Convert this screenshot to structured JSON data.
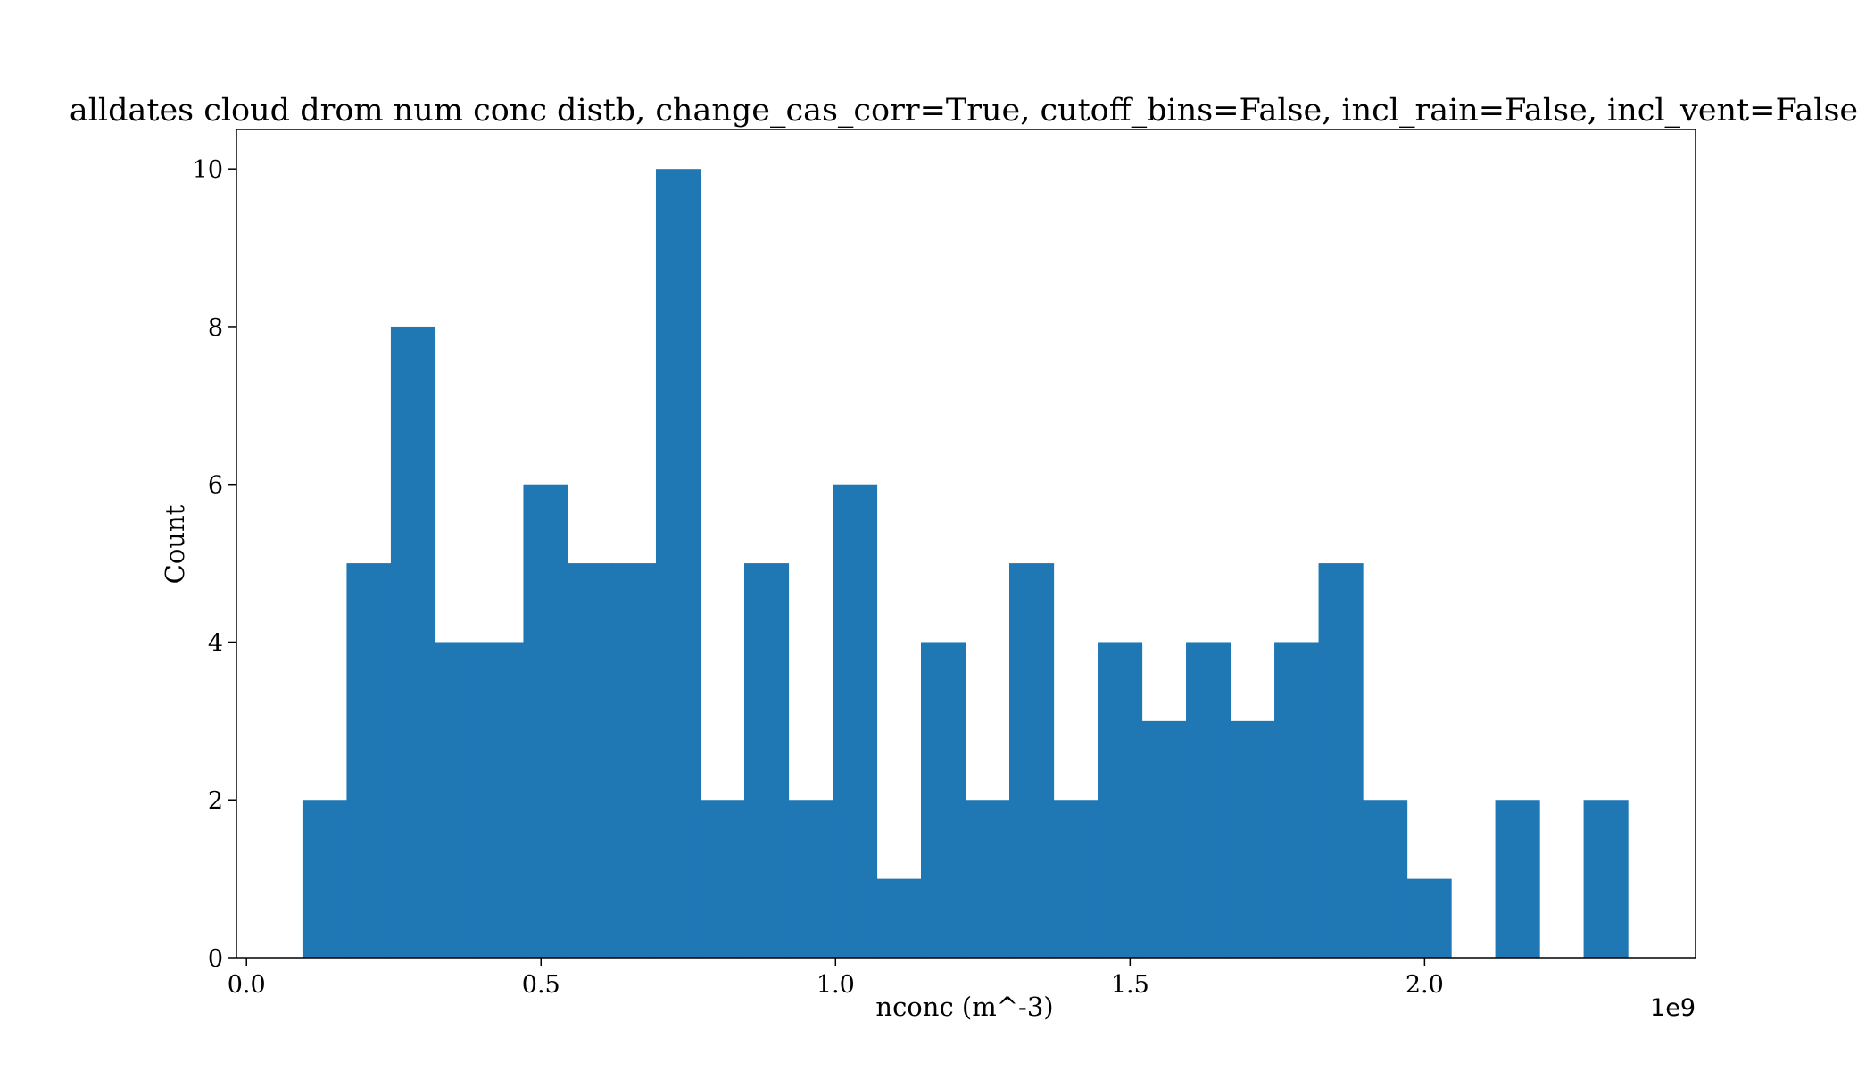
{
  "chart_data": {
    "type": "bar",
    "title": "alldates cloud drom num conc distb, change_cas_corr=True, cutoff_bins=False, incl_rain=False, incl_vent=False",
    "xlabel": "nconc (m^-3)",
    "ylabel": "Count",
    "x_offset_label": "1e9",
    "x_scale": 1000000000,
    "bin_edges": [
      0.095,
      0.17,
      0.245,
      0.32,
      0.395,
      0.47,
      0.545,
      0.62,
      0.695,
      0.77,
      0.845,
      0.92,
      0.995,
      1.07,
      1.145,
      1.22,
      1.295,
      1.37,
      1.445,
      1.52,
      1.595,
      1.67,
      1.745,
      1.82,
      1.895,
      1.97,
      2.045,
      2.12,
      2.195,
      2.27,
      2.345
    ],
    "values": [
      2,
      5,
      8,
      4,
      4,
      6,
      5,
      5,
      10,
      2,
      5,
      2,
      6,
      1,
      4,
      2,
      5,
      2,
      4,
      3,
      4,
      3,
      4,
      5,
      2,
      1,
      0,
      2,
      0,
      2
    ],
    "xlim": [
      -0.017,
      2.46
    ],
    "ylim": [
      0,
      10.5
    ],
    "xticks": [
      0.0,
      0.5,
      1.0,
      1.5,
      2.0
    ],
    "xtick_labels": [
      "0.0",
      "0.5",
      "1.0",
      "1.5",
      "2.0"
    ],
    "yticks": [
      0,
      2,
      4,
      6,
      8,
      10
    ],
    "ytick_labels": [
      "0",
      "2",
      "4",
      "6",
      "8",
      "10"
    ],
    "bar_color": "#1f77b4",
    "grid": false,
    "legend": "none"
  }
}
